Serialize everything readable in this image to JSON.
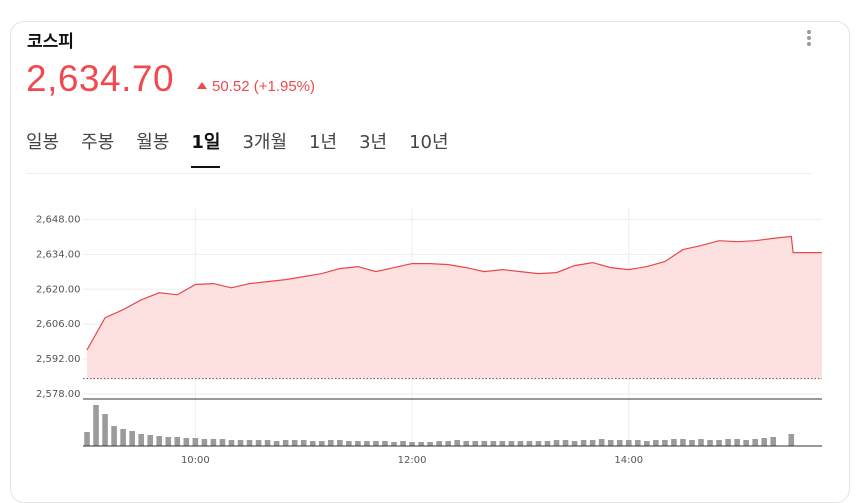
{
  "header": {
    "title": "코스피",
    "price": "2,634.70",
    "change": "50.52",
    "change_pct": "(+1.95%)"
  },
  "tabs": {
    "items": [
      "일봉",
      "주봉",
      "월봉",
      "1일",
      "3개월",
      "1년",
      "3년",
      "10년"
    ],
    "active": 3
  },
  "chart_data": [
    {
      "type": "area",
      "color": "#e8484b",
      "fill": "#fde1e1",
      "x": [
        "09:00",
        "09:10",
        "09:20",
        "09:30",
        "09:40",
        "09:50",
        "10:00",
        "10:10",
        "10:20",
        "10:30",
        "10:40",
        "10:50",
        "11:00",
        "11:10",
        "11:20",
        "11:30",
        "11:40",
        "11:50",
        "12:00",
        "12:10",
        "12:20",
        "12:30",
        "12:40",
        "12:50",
        "13:00",
        "13:10",
        "13:20",
        "13:30",
        "13:40",
        "13:50",
        "14:00",
        "14:10",
        "14:20",
        "14:30",
        "14:40",
        "14:50",
        "15:00",
        "15:10",
        "15:20",
        "15:30",
        "15:31",
        "15:47"
      ],
      "values": [
        2595.7,
        2608.6,
        2611.8,
        2615.8,
        2618.6,
        2617.8,
        2621.9,
        2622.3,
        2620.6,
        2622.3,
        2623.1,
        2623.9,
        2625.1,
        2626.3,
        2628.3,
        2629.1,
        2627.1,
        2628.7,
        2630.3,
        2630.3,
        2629.9,
        2628.7,
        2627.1,
        2627.9,
        2627.1,
        2626.3,
        2626.7,
        2629.5,
        2630.7,
        2628.7,
        2627.9,
        2629.1,
        2631.1,
        2635.9,
        2637.5,
        2639.5,
        2639.1,
        2639.5,
        2640.4,
        2641.2,
        2634.7,
        2634.7
      ],
      "baseline": 2584.18,
      "xlim": [
        "09:00",
        "15:47"
      ],
      "xticks": [
        "10:00",
        "12:00",
        "14:00"
      ],
      "ylim": [
        2576,
        2653
      ],
      "yticks": [
        {
          "value": 2578,
          "label": "2,578.00"
        },
        {
          "value": 2592,
          "label": "2,592.00"
        },
        {
          "value": 2606,
          "label": "2,606.00"
        },
        {
          "value": 2620,
          "label": "2,620.00"
        },
        {
          "value": 2634,
          "label": "2,634.00"
        },
        {
          "value": 2648,
          "label": "2,648.00"
        }
      ],
      "grid": true
    },
    {
      "type": "bar",
      "color": "#9b9b9b",
      "x": [
        "09:00",
        "09:05",
        "09:10",
        "09:15",
        "09:20",
        "09:25",
        "09:30",
        "09:35",
        "09:40",
        "09:45",
        "09:50",
        "09:55",
        "10:00",
        "10:05",
        "10:10",
        "10:15",
        "10:20",
        "10:25",
        "10:30",
        "10:35",
        "10:40",
        "10:45",
        "10:50",
        "10:55",
        "11:00",
        "11:05",
        "11:10",
        "11:15",
        "11:20",
        "11:25",
        "11:30",
        "11:35",
        "11:40",
        "11:45",
        "11:50",
        "11:55",
        "12:00",
        "12:05",
        "12:10",
        "12:15",
        "12:20",
        "12:25",
        "12:30",
        "12:35",
        "12:40",
        "12:45",
        "12:50",
        "12:55",
        "13:00",
        "13:05",
        "13:10",
        "13:15",
        "13:20",
        "13:25",
        "13:30",
        "13:35",
        "13:40",
        "13:45",
        "13:50",
        "13:55",
        "14:00",
        "14:05",
        "14:10",
        "14:15",
        "14:20",
        "14:25",
        "14:30",
        "14:35",
        "14:40",
        "14:45",
        "14:50",
        "14:55",
        "15:00",
        "15:05",
        "15:10",
        "15:15",
        "15:20",
        "15:30"
      ],
      "values": [
        14,
        41,
        32,
        20,
        17,
        15,
        12,
        11,
        10,
        9,
        9,
        8,
        8,
        7,
        7,
        7,
        6,
        6,
        6,
        6,
        6,
        5,
        6,
        6,
        6,
        5,
        5,
        6,
        6,
        5,
        5,
        5,
        5,
        5,
        4,
        5,
        4,
        4,
        4,
        5,
        5,
        6,
        5,
        5,
        5,
        5,
        5,
        5,
        5,
        5,
        5,
        5,
        6,
        6,
        5,
        6,
        6,
        7,
        6,
        6,
        6,
        6,
        5,
        6,
        6,
        7,
        7,
        6,
        7,
        6,
        6,
        7,
        7,
        6,
        7,
        8,
        9,
        12
      ],
      "xlim": [
        "09:00",
        "15:47"
      ],
      "ylim": [
        0,
        46
      ]
    }
  ]
}
